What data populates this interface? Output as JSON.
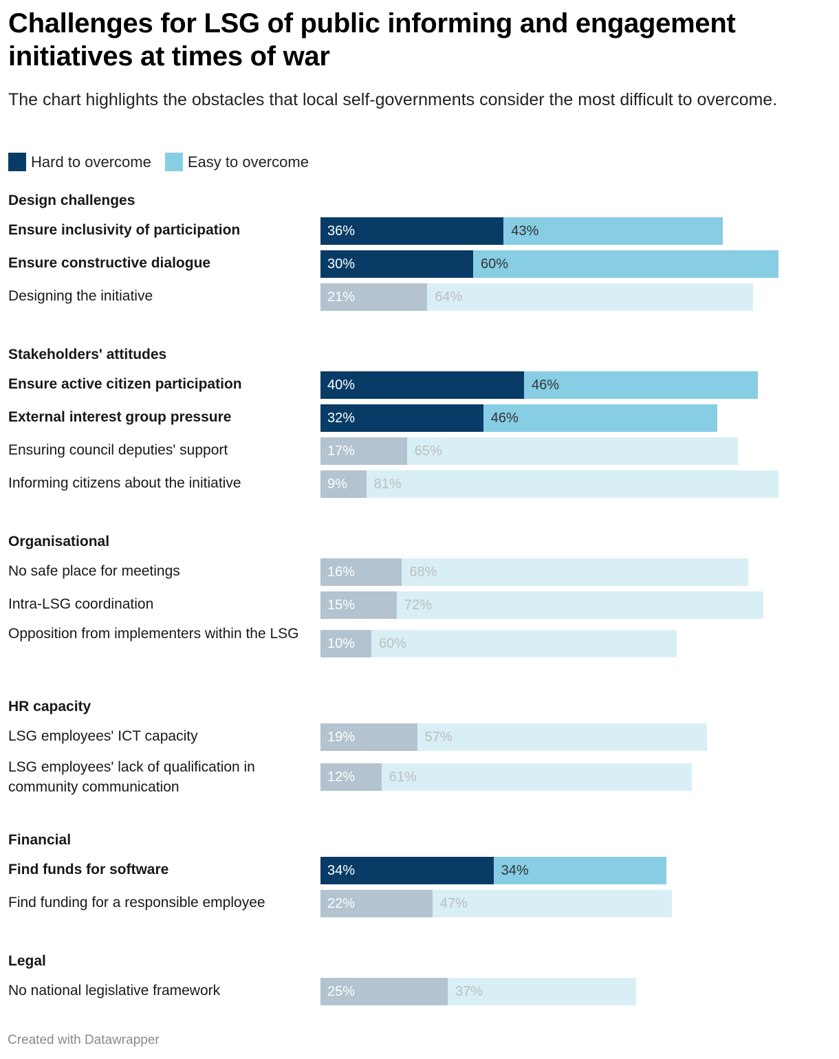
{
  "header": {
    "title": "Challenges for LSG of public informing and engagement initiatives at times of war",
    "subtitle": "The chart highlights the obstacles that local self-governments consider the most difficult to overcome."
  },
  "legend": [
    {
      "label": "Hard to overcome",
      "color": "#083c66"
    },
    {
      "label": "Easy to overcome",
      "color": "#87cde4"
    }
  ],
  "colors": {
    "hard_highlight": "#083c66",
    "easy_highlight": "#87cde4",
    "hard_muted": "#b3c3cf",
    "easy_muted": "#d9eff6",
    "label_on_hard": "#ffffff",
    "label_on_easy_highlight": "#333333",
    "label_on_easy_muted": "#bdbdbd"
  },
  "footer": {
    "credit": "Created with Datawrapper"
  },
  "chart_data": {
    "type": "bar",
    "orientation": "horizontal",
    "stacked": true,
    "title": "Challenges for LSG of public informing and engagement initiatives at times of war",
    "subtitle": "The chart highlights the obstacles that local self-governments consider the most difficult to overcome.",
    "unit": "%",
    "legend": [
      "Hard to overcome",
      "Easy to overcome"
    ],
    "legend_position": "top-left",
    "xlim": [
      0,
      100
    ],
    "grid": false,
    "groups": [
      {
        "name": "Design challenges",
        "rows": [
          {
            "label": "Ensure inclusivity of participation",
            "hard": 36,
            "easy": 43,
            "highlighted": true
          },
          {
            "label": "Ensure constructive dialogue",
            "hard": 30,
            "easy": 60,
            "highlighted": true
          },
          {
            "label": "Designing the initiative",
            "hard": 21,
            "easy": 64,
            "highlighted": false
          }
        ]
      },
      {
        "name": "Stakeholders' attitudes",
        "rows": [
          {
            "label": "Ensure active citizen participation",
            "hard": 40,
            "easy": 46,
            "highlighted": true
          },
          {
            "label": "External interest group pressure",
            "hard": 32,
            "easy": 46,
            "highlighted": true
          },
          {
            "label": "Ensuring council deputies' support",
            "hard": 17,
            "easy": 65,
            "highlighted": false
          },
          {
            "label": "Informing citizens about the initiative",
            "hard": 9,
            "easy": 81,
            "highlighted": false
          }
        ]
      },
      {
        "name": "Organisational",
        "rows": [
          {
            "label": "No safe place for meetings",
            "hard": 16,
            "easy": 68,
            "highlighted": false
          },
          {
            "label": "Intra-LSG coordination",
            "hard": 15,
            "easy": 72,
            "highlighted": false
          },
          {
            "label": "Opposition from implementers within the LSG",
            "hard": 10,
            "easy": 60,
            "highlighted": false
          }
        ]
      },
      {
        "name": "HR capacity",
        "rows": [
          {
            "label": "LSG employees' ICT capacity",
            "hard": 19,
            "easy": 57,
            "highlighted": false
          },
          {
            "label": "LSG employees' lack of qualification in community communication",
            "hard": 12,
            "easy": 61,
            "highlighted": false
          }
        ]
      },
      {
        "name": "Financial",
        "rows": [
          {
            "label": "Find funds for software",
            "hard": 34,
            "easy": 34,
            "highlighted": true
          },
          {
            "label": "Find funding for a responsible employee",
            "hard": 22,
            "easy": 47,
            "highlighted": false
          }
        ]
      },
      {
        "name": "Legal",
        "rows": [
          {
            "label": "No national legislative framework",
            "hard": 25,
            "easy": 37,
            "highlighted": false
          }
        ]
      }
    ]
  }
}
